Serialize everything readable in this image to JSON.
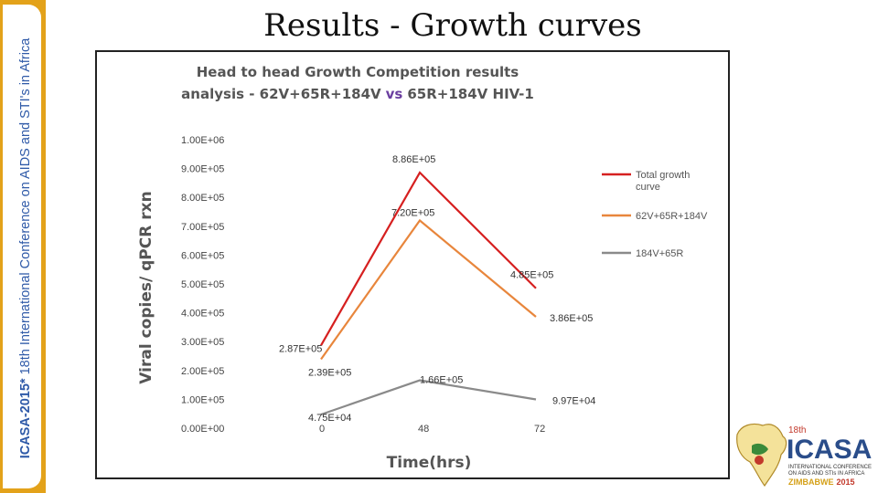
{
  "slide": {
    "title": "Results - Growth curves",
    "side_banner_bold": "ICASA-2015*",
    "side_banner_rest": " 18th International Conference on AIDS and STI's in Africa"
  },
  "logo": {
    "superscript": "18th",
    "name": "ICASA",
    "line1": "INTERNATIONAL CONFERENCE",
    "line2": "ON AIDS AND STIs IN AFRICA",
    "country": "ZIMBABWE",
    "year": "2015"
  },
  "colors": {
    "total": "#d62020",
    "combo": "#e8863c",
    "dual": "#8a8a8a",
    "banner": "#e3a21a"
  },
  "chart_data": {
    "type": "line",
    "title_line1": "Head to head Growth Competition results",
    "title_line2_pre": "analysis - 62V+65R+184V",
    "title_line2_vs": "vs",
    "title_line2_post": "65R+184V HIV-1",
    "xlabel": "Time(hrs)",
    "ylabel": "Viral copies/ qPCR rxn",
    "x": [
      "0",
      "48",
      "72"
    ],
    "ylim": [
      0,
      1000000
    ],
    "yticks": [
      "0.00E+00",
      "1.00E+05",
      "2.00E+05",
      "3.00E+05",
      "4.00E+05",
      "5.00E+05",
      "6.00E+05",
      "7.00E+05",
      "8.00E+05",
      "9.00E+05",
      "1.00E+06"
    ],
    "legend_position": "right",
    "series": [
      {
        "name": "Total growth curve",
        "color": "#d62020",
        "values": [
          287000,
          886000,
          485000
        ],
        "labels": [
          "2.87E+05",
          "8.86E+05",
          "4.85E+05"
        ]
      },
      {
        "name": "62V+65R+184V",
        "color": "#e8863c",
        "values": [
          239000,
          720000,
          386000
        ],
        "labels": [
          "2.39E+05",
          "7.20E+05",
          "3.86E+05"
        ]
      },
      {
        "name": "184V+65R",
        "color": "#8a8a8a",
        "values": [
          47500,
          166000,
          99700
        ],
        "labels": [
          "4.75E+04",
          "1.66E+05",
          "9.97E+04"
        ]
      }
    ]
  }
}
